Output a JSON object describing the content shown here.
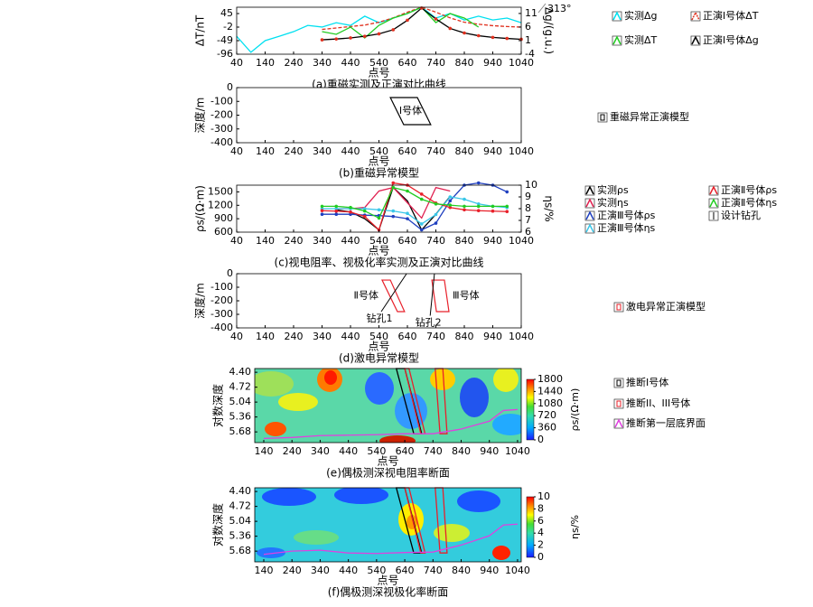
{
  "chart_data": [
    {
      "type": "line",
      "title": "(a)重磁实测及正演对比曲线",
      "xlabel": "点号",
      "ylabel": "ΔT/nT",
      "y2label": "Δg/(g.u.)",
      "annotation": "313°",
      "xlim": [
        40,
        1040
      ],
      "xticks": [
        40,
        140,
        240,
        340,
        440,
        540,
        640,
        740,
        840,
        940,
        1040
      ],
      "ylim": [
        -96,
        67
      ],
      "yticks": [
        45,
        -2,
        -49,
        -96
      ],
      "y2lim": [
        -4,
        13.3
      ],
      "y2ticks": [
        11,
        6,
        1,
        -4
      ],
      "series": [
        {
          "name": "实测Δg",
          "color": "#00e0f0",
          "axis": "y2",
          "x": [
            40,
            90,
            140,
            190,
            240,
            290,
            340,
            390,
            440,
            490,
            540,
            590,
            640,
            690,
            740,
            790,
            840,
            890,
            940,
            990,
            1040
          ],
          "values": [
            2.6,
            -3.3,
            1.0,
            2.6,
            4.3,
            6.6,
            6.0,
            7.6,
            6.6,
            10.0,
            7.6,
            9.3,
            11.0,
            13.3,
            9.3,
            11.0,
            8.6,
            10.0,
            8.6,
            9.3,
            7.6
          ]
        },
        {
          "name": "正演Ⅰ号体ΔT",
          "color": "#e0301e",
          "dash": true,
          "x": [
            340,
            390,
            440,
            490,
            540,
            590,
            640,
            690,
            740,
            790,
            840,
            890,
            940,
            990,
            1040
          ],
          "values": [
            -10,
            -5,
            0,
            5,
            15,
            30,
            50,
            67,
            50,
            30,
            15,
            8,
            3,
            0,
            -2
          ]
        },
        {
          "name": "实测ΔT",
          "color": "#22cc22",
          "x": [
            340,
            390,
            440,
            490,
            540,
            590,
            640,
            690,
            740,
            790,
            840,
            890
          ],
          "values": [
            -17.6,
            -27,
            -2,
            -39.6,
            4.3,
            29.4,
            45,
            67,
            13.7,
            45,
            29.4,
            -2
          ]
        },
        {
          "name": "正演Ⅰ号体Δg",
          "color": "#000000",
          "marker": "#e0301e",
          "axis": "y2",
          "x": [
            340,
            390,
            440,
            490,
            540,
            590,
            640,
            690,
            740,
            790,
            840,
            890,
            940,
            990,
            1040
          ],
          "values": [
            1.3,
            1.6,
            2.0,
            2.6,
            3.5,
            5.0,
            8.5,
            13.0,
            9.0,
            5.5,
            3.8,
            2.8,
            2.2,
            1.8,
            1.5
          ]
        }
      ]
    },
    {
      "type": "model",
      "title": "(b)重磁异常模型",
      "xlabel": "点号",
      "ylabel": "深度/m",
      "legend": "重磁异常正演模型",
      "xlim": [
        40,
        1040
      ],
      "xticks": [
        40,
        140,
        240,
        340,
        440,
        540,
        640,
        740,
        840,
        940,
        1040
      ],
      "ylim": [
        -400,
        0
      ],
      "yticks": [
        0,
        -100,
        -200,
        -300,
        -400
      ],
      "shapes": [
        {
          "label": "Ⅰ号体",
          "color": "#000000",
          "x": [
            580,
            675,
            722,
            627
          ],
          "y": [
            -72,
            -72,
            -269,
            -269
          ]
        }
      ]
    },
    {
      "type": "line",
      "title": "(c)视电阻率、视极化率实测及正演对比曲线",
      "xlabel": "点号",
      "ylabel": "ρs/(Ω·m)",
      "y2label": "ηs/%",
      "extra_legend": "设计钻孔",
      "xlim": [
        40,
        1040
      ],
      "xticks": [
        40,
        140,
        240,
        340,
        440,
        540,
        640,
        740,
        840,
        940,
        1040
      ],
      "ylim": [
        600,
        1650
      ],
      "yticks": [
        600,
        900,
        1200,
        1500
      ],
      "y2lim": [
        6,
        10
      ],
      "y2ticks": [
        6,
        7,
        8,
        9,
        10
      ],
      "series": [
        {
          "name": "实测ρs",
          "color": "#000000",
          "x": [
            390,
            440,
            490,
            540,
            590,
            640,
            690,
            740,
            790
          ],
          "values": [
            1100,
            1050,
            900,
            650,
            1600,
            1300,
            650,
            1000,
            1400
          ]
        },
        {
          "name": "实测ηs",
          "color": "#e02050",
          "axis": "y2",
          "x": [
            390,
            440,
            490,
            540,
            590,
            640,
            690,
            740,
            790
          ],
          "values": [
            8.0,
            8.0,
            8.1,
            9.5,
            9.8,
            8.5,
            7.2,
            9.8,
            9.5
          ]
        },
        {
          "name": "正演Ⅲ号体ρs",
          "color": "#1f3fbf",
          "marker": "#1f3fbf",
          "x": [
            340,
            390,
            440,
            490,
            540,
            590,
            640,
            690,
            740,
            790,
            840,
            890,
            940,
            990
          ],
          "values": [
            1000,
            1000,
            1000,
            980,
            970,
            950,
            900,
            650,
            800,
            1300,
            1650,
            1700,
            1650,
            1500
          ]
        },
        {
          "name": "正演Ⅲ号体ηs",
          "color": "#39c6e8",
          "marker": "#39c6e8",
          "axis": "y2",
          "x": [
            340,
            390,
            440,
            490,
            540,
            590,
            640,
            690,
            740,
            790,
            840,
            890,
            940,
            990
          ],
          "values": [
            8.0,
            8.0,
            8.0,
            8.0,
            7.9,
            7.8,
            7.6,
            6.7,
            7.5,
            9.0,
            8.8,
            8.4,
            8.2,
            8.1
          ]
        },
        {
          "name": "正演Ⅱ号体ρs",
          "color": "#e8202a",
          "marker": "#e8202a",
          "x": [
            340,
            390,
            440,
            490,
            540,
            590,
            640,
            690,
            740,
            790,
            840,
            890,
            940,
            990
          ],
          "values": [
            1080,
            1070,
            1050,
            950,
            650,
            1700,
            1650,
            1450,
            1250,
            1150,
            1100,
            1080,
            1070,
            1060
          ]
        },
        {
          "name": "正演Ⅱ号体ηs",
          "color": "#22cc22",
          "marker": "#22cc22",
          "axis": "y2",
          "x": [
            340,
            390,
            440,
            490,
            540,
            590,
            640,
            690,
            740,
            790,
            840,
            890,
            940,
            990
          ],
          "values": [
            8.2,
            8.2,
            8.1,
            7.8,
            7.2,
            9.8,
            9.5,
            8.8,
            8.4,
            8.3,
            8.2,
            8.2,
            8.2,
            8.2
          ]
        }
      ]
    },
    {
      "type": "model",
      "title": "(d)激电异常模型",
      "xlabel": "点号",
      "ylabel": "深度/m",
      "legend": "激电异常正演模型",
      "xlim": [
        40,
        1040
      ],
      "xticks": [
        40,
        140,
        240,
        340,
        440,
        540,
        640,
        740,
        840,
        940,
        1040
      ],
      "ylim": [
        -400,
        0
      ],
      "yticks": [
        0,
        -100,
        -200,
        -300,
        -400
      ],
      "shapes": [
        {
          "label": "Ⅱ号体",
          "color": "#e8202a",
          "x": [
            551,
            580,
            630,
            605
          ],
          "y": [
            -47,
            -47,
            -280,
            -280
          ]
        },
        {
          "label": "Ⅲ号体",
          "color": "#e8202a",
          "x": [
            726,
            770,
            786,
            742
          ],
          "y": [
            -47,
            -47,
            -280,
            -280
          ]
        }
      ],
      "drillholes": [
        {
          "label": "钻孔1",
          "x": [
            637,
            548
          ],
          "y": [
            0,
            -280
          ]
        },
        {
          "label": "钻孔2",
          "x": [
            735,
            720
          ],
          "y": [
            0,
            -310
          ]
        }
      ]
    },
    {
      "type": "contour",
      "title": "(e)偶极测深视电阻率断面",
      "xlabel": "点号",
      "ylabel": "对数深度",
      "clabel": "ρs/(Ω·m)",
      "xlim": [
        108,
        1053
      ],
      "xticks": [
        140,
        240,
        340,
        440,
        540,
        640,
        740,
        840,
        940,
        1040
      ],
      "ylim": [
        4.32,
        5.91
      ],
      "y_inverted": true,
      "yticks": [
        {
          "value": 4.4,
          "label": "4.40"
        },
        4.72,
        5.04,
        5.36,
        5.68
      ],
      "clim": [
        0,
        1800
      ],
      "cticks": [
        0,
        360,
        720,
        1080,
        1440,
        1800
      ],
      "shapes": [
        {
          "name": "推断I号体",
          "color": "#000000",
          "polygons": [
            {
              "x": [
                610,
                640,
                700,
                672
              ],
              "y": [
                4.32,
                4.32,
                5.72,
                5.72
              ]
            }
          ]
        },
        {
          "name": "推断II、III号体",
          "color": "#e8202a",
          "polygons": [
            {
              "x": [
                640,
                655,
                712,
                697
              ],
              "y": [
                4.32,
                4.32,
                5.72,
                5.72
              ]
            },
            {
              "x": [
                748,
                775,
                790,
                765
              ],
              "y": [
                4.32,
                4.32,
                5.72,
                5.72
              ]
            }
          ]
        }
      ],
      "series": [
        {
          "name": "推断第一层底界面",
          "color": "#e040e0",
          "x": [
            140,
            240,
            340,
            440,
            540,
            640,
            740,
            840,
            940,
            990,
            1040
          ],
          "values": [
            5.82,
            5.8,
            5.76,
            5.75,
            5.74,
            5.72,
            5.72,
            5.62,
            5.45,
            5.22,
            5.2
          ]
        }
      ]
    },
    {
      "type": "contour",
      "title": "(f)偶极测深视极化率断面",
      "xlabel": "点号",
      "ylabel": "对数深度",
      "clabel": "ηs/%",
      "xlim": [
        108,
        1053
      ],
      "xticks": [
        140,
        240,
        340,
        440,
        540,
        640,
        740,
        840,
        940,
        1040
      ],
      "ylim": [
        4.32,
        5.91
      ],
      "y_inverted": true,
      "yticks": [
        {
          "value": 4.4,
          "label": "4.40"
        },
        4.72,
        5.04,
        5.36,
        5.68
      ],
      "clim": [
        0,
        10
      ],
      "cticks": [
        0,
        2,
        4,
        6,
        8,
        10
      ],
      "shapes": [
        {
          "color": "#000000",
          "polygons": [
            {
              "x": [
                610,
                640,
                700,
                672
              ],
              "y": [
                4.32,
                4.32,
                5.72,
                5.72
              ]
            }
          ]
        },
        {
          "color": "#e8202a",
          "polygons": [
            {
              "x": [
                640,
                655,
                712,
                697
              ],
              "y": [
                4.32,
                4.32,
                5.72,
                5.72
              ]
            },
            {
              "x": [
                748,
                775,
                790,
                765
              ],
              "y": [
                4.32,
                4.32,
                5.72,
                5.72
              ]
            }
          ]
        }
      ],
      "series": [
        {
          "color": "#e040e0",
          "x": [
            140,
            240,
            340,
            440,
            540,
            640,
            740,
            840,
            940,
            990,
            1040
          ],
          "values": [
            5.75,
            5.68,
            5.66,
            5.72,
            5.73,
            5.71,
            5.7,
            5.55,
            5.35,
            5.12,
            5.1
          ]
        }
      ]
    }
  ]
}
